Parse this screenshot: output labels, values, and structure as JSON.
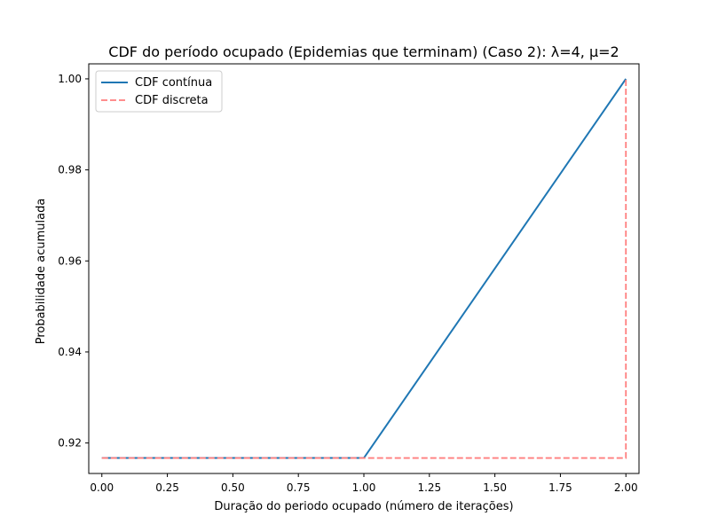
{
  "chart_data": {
    "type": "line",
    "title": "CDF do período ocupado (Epidemias que terminam) (Caso 2): λ=4, μ=2",
    "xlabel": "Duração do periodo ocupado (número de iterações)",
    "ylabel": "Probabilidade acumulada",
    "xlim": [
      -0.05,
      2.05
    ],
    "ylim": [
      0.9133,
      1.0033
    ],
    "x_ticks": [
      "0.00",
      "0.25",
      "0.50",
      "0.75",
      "1.00",
      "1.25",
      "1.50",
      "1.75",
      "2.00"
    ],
    "y_ticks": [
      "0.92",
      "0.94",
      "0.96",
      "0.98",
      "1.00"
    ],
    "grid": false,
    "legend_position": "upper-left",
    "series": [
      {
        "name": "CDF contínua",
        "style": "solid",
        "color": "#1f77b4",
        "points": [
          [
            0,
            0.9167
          ],
          [
            1,
            0.9167
          ],
          [
            2,
            1.0
          ]
        ]
      },
      {
        "name": "CDF discreta",
        "style": "dashed-step",
        "color": "#ff7f7f",
        "points": [
          [
            0,
            0.9167
          ],
          [
            2,
            0.9167
          ],
          [
            2,
            1.0
          ]
        ]
      }
    ]
  }
}
